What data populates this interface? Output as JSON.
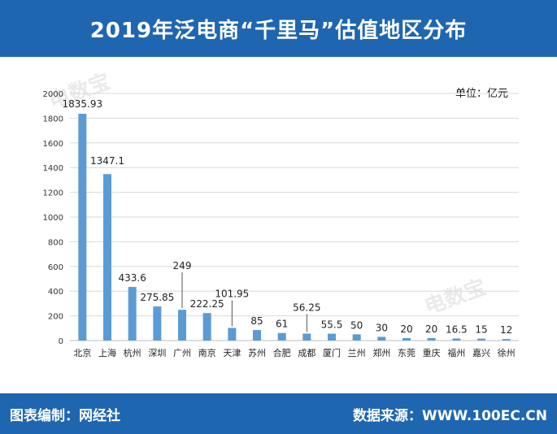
{
  "header": {
    "title": "2019年泛电商“千里马”估值地区分布"
  },
  "unit_label": "单位：亿元",
  "footer": {
    "left": "图表编制：网经社",
    "right": "数据来源：WWW.100EC.CN"
  },
  "watermark": {
    "text": "电数宝"
  },
  "colors": {
    "header_bg": "#1f66b1",
    "bar": "#5b9bd5",
    "grid": "#d9d9d9"
  },
  "chart_data": {
    "type": "bar",
    "title": "2019年泛电商“千里马”估值地区分布",
    "xlabel": "",
    "ylabel": "",
    "unit": "单位：亿元",
    "ylim": [
      0,
      2000
    ],
    "yticks": [
      0,
      200,
      400,
      600,
      800,
      1000,
      1200,
      1400,
      1600,
      1800,
      2000
    ],
    "grid": true,
    "categories": [
      "北京",
      "上海",
      "杭州",
      "深圳",
      "广州",
      "南京",
      "天津",
      "苏州",
      "合肥",
      "成都",
      "厦门",
      "兰州",
      "郑州",
      "东莞",
      "重庆",
      "福州",
      "嘉兴",
      "徐州"
    ],
    "values": [
      1835.93,
      1347.1,
      433.6,
      275.85,
      249,
      222.25,
      101.95,
      85,
      61,
      56.25,
      55.5,
      50,
      30,
      20,
      20,
      16.5,
      15,
      12
    ],
    "value_labels": [
      "1835.93",
      "1347.1",
      "433.6",
      "275.85",
      "249",
      "222.25",
      "101.95",
      "85",
      "61",
      "56.25",
      "55.5",
      "50",
      "30",
      "20",
      "20",
      "16.5",
      "15",
      "12"
    ]
  }
}
